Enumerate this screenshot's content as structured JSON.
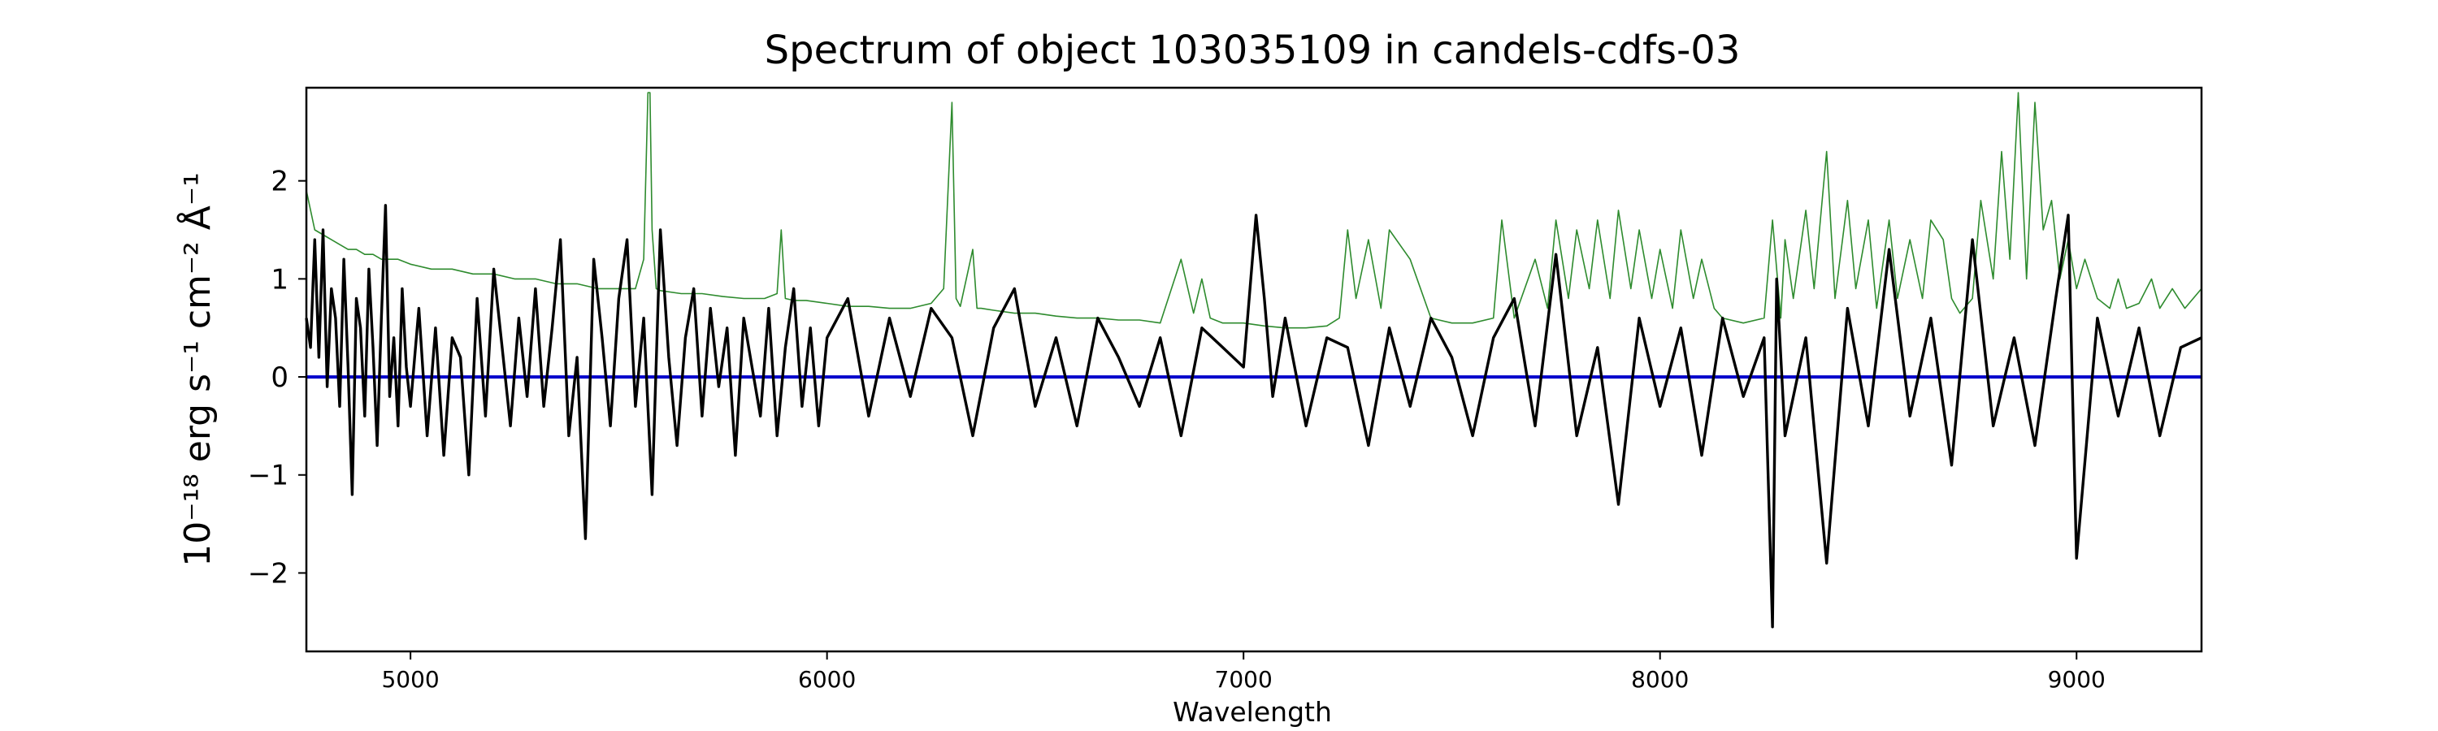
{
  "chart_data": {
    "type": "line",
    "title": "Spectrum of object 103035109 in candels-cdfs-03",
    "xlabel": "Wavelength",
    "ylabel": "10⁻¹⁸ erg s⁻¹ cm⁻² Å⁻¹",
    "xlim": [
      4750,
      9300
    ],
    "ylim": [
      -2.8,
      2.95
    ],
    "xticks": [
      5000,
      6000,
      7000,
      8000,
      9000
    ],
    "yticks": [
      -2,
      -1,
      0,
      1,
      2
    ],
    "grid": false,
    "legend": "none",
    "series": [
      {
        "role": "flux",
        "color": "#000000",
        "x": [
          4750,
          4760,
          4770,
          4780,
          4790,
          4800,
          4810,
          4820,
          4830,
          4840,
          4850,
          4860,
          4870,
          4880,
          4890,
          4900,
          4910,
          4920,
          4930,
          4940,
          4950,
          4960,
          4970,
          4980,
          4990,
          5000,
          5020,
          5040,
          5060,
          5080,
          5100,
          5120,
          5140,
          5160,
          5180,
          5200,
          5220,
          5240,
          5260,
          5280,
          5300,
          5320,
          5340,
          5360,
          5380,
          5400,
          5420,
          5440,
          5460,
          5480,
          5500,
          5520,
          5540,
          5560,
          5580,
          5600,
          5620,
          5640,
          5660,
          5680,
          5700,
          5720,
          5740,
          5760,
          5780,
          5800,
          5820,
          5840,
          5860,
          5880,
          5900,
          5920,
          5940,
          5960,
          5980,
          6000,
          6050,
          6100,
          6150,
          6200,
          6250,
          6300,
          6350,
          6400,
          6450,
          6500,
          6550,
          6600,
          6650,
          6700,
          6750,
          6800,
          6850,
          6900,
          6950,
          7000,
          7030,
          7050,
          7070,
          7100,
          7150,
          7200,
          7250,
          7300,
          7350,
          7400,
          7450,
          7500,
          7550,
          7600,
          7650,
          7700,
          7750,
          7800,
          7850,
          7900,
          7950,
          8000,
          8050,
          8100,
          8150,
          8200,
          8250,
          8270,
          8280,
          8300,
          8350,
          8400,
          8450,
          8500,
          8550,
          8600,
          8650,
          8700,
          8750,
          8800,
          8850,
          8900,
          8950,
          8980,
          9000,
          9050,
          9100,
          9150,
          9200,
          9250,
          9300
        ],
        "y": [
          0.6,
          0.3,
          1.4,
          0.2,
          1.5,
          -0.1,
          0.9,
          0.6,
          -0.3,
          1.2,
          0.1,
          -1.2,
          0.8,
          0.5,
          -0.4,
          1.1,
          0.3,
          -0.7,
          0.6,
          1.75,
          -0.2,
          0.4,
          -0.5,
          0.9,
          0.1,
          -0.3,
          0.7,
          -0.6,
          0.5,
          -0.8,
          0.4,
          0.2,
          -1.0,
          0.8,
          -0.4,
          1.1,
          0.3,
          -0.5,
          0.6,
          -0.2,
          0.9,
          -0.3,
          0.5,
          1.4,
          -0.6,
          0.2,
          -1.65,
          1.2,
          0.4,
          -0.5,
          0.8,
          1.4,
          -0.3,
          0.6,
          -1.2,
          1.5,
          0.2,
          -0.7,
          0.4,
          0.9,
          -0.4,
          0.7,
          -0.1,
          0.5,
          -0.8,
          0.6,
          0.1,
          -0.4,
          0.7,
          -0.6,
          0.3,
          0.9,
          -0.3,
          0.5,
          -0.5,
          0.4,
          0.8,
          -0.4,
          0.6,
          -0.2,
          0.7,
          0.4,
          -0.6,
          0.5,
          0.9,
          -0.3,
          0.4,
          -0.5,
          0.6,
          0.2,
          -0.3,
          0.4,
          -0.6,
          0.5,
          0.3,
          0.1,
          1.65,
          0.8,
          -0.2,
          0.6,
          -0.5,
          0.4,
          0.3,
          -0.7,
          0.5,
          -0.3,
          0.6,
          0.2,
          -0.6,
          0.4,
          0.8,
          -0.5,
          1.25,
          -0.6,
          0.3,
          -1.3,
          0.6,
          -0.3,
          0.5,
          -0.8,
          0.6,
          -0.2,
          0.4,
          -2.55,
          1.0,
          -0.6,
          0.4,
          -1.9,
          0.7,
          -0.5,
          1.3,
          -0.4,
          0.6,
          -0.9,
          1.4,
          -0.5,
          0.4,
          -0.7,
          0.8,
          1.65,
          -1.85,
          0.6,
          -0.4,
          0.5,
          -0.6,
          0.3,
          0.4
        ]
      },
      {
        "role": "noise",
        "color": "#2e8b2e",
        "x": [
          4750,
          4770,
          4790,
          4810,
          4830,
          4850,
          4870,
          4890,
          4910,
          4930,
          4950,
          4970,
          5000,
          5050,
          5100,
          5150,
          5200,
          5250,
          5300,
          5350,
          5400,
          5450,
          5500,
          5540,
          5560,
          5570,
          5575,
          5580,
          5590,
          5600,
          5650,
          5700,
          5750,
          5800,
          5850,
          5880,
          5890,
          5900,
          5920,
          5950,
          6000,
          6050,
          6100,
          6150,
          6200,
          6250,
          6280,
          6300,
          6310,
          6320,
          6350,
          6360,
          6370,
          6400,
          6450,
          6500,
          6550,
          6600,
          6650,
          6700,
          6750,
          6800,
          6850,
          6880,
          6900,
          6920,
          6950,
          7000,
          7050,
          7100,
          7150,
          7200,
          7230,
          7250,
          7270,
          7300,
          7330,
          7350,
          7400,
          7450,
          7500,
          7550,
          7600,
          7620,
          7650,
          7700,
          7730,
          7750,
          7780,
          7800,
          7830,
          7850,
          7880,
          7900,
          7930,
          7950,
          7980,
          8000,
          8030,
          8050,
          8080,
          8100,
          8130,
          8150,
          8200,
          8250,
          8270,
          8290,
          8300,
          8320,
          8350,
          8370,
          8400,
          8420,
          8450,
          8470,
          8500,
          8520,
          8550,
          8570,
          8600,
          8630,
          8650,
          8680,
          8700,
          8720,
          8750,
          8770,
          8800,
          8820,
          8840,
          8860,
          8880,
          8900,
          8920,
          8940,
          8960,
          8980,
          9000,
          9020,
          9050,
          9080,
          9100,
          9120,
          9150,
          9180,
          9200,
          9230,
          9260,
          9300
        ],
        "y": [
          1.9,
          1.5,
          1.45,
          1.4,
          1.35,
          1.3,
          1.3,
          1.25,
          1.25,
          1.2,
          1.2,
          1.2,
          1.15,
          1.1,
          1.1,
          1.05,
          1.05,
          1.0,
          1.0,
          0.95,
          0.95,
          0.9,
          0.9,
          0.9,
          1.2,
          2.9,
          2.9,
          1.5,
          0.9,
          0.88,
          0.85,
          0.85,
          0.82,
          0.8,
          0.8,
          0.85,
          1.5,
          0.8,
          0.78,
          0.78,
          0.75,
          0.72,
          0.72,
          0.7,
          0.7,
          0.75,
          0.9,
          2.8,
          0.8,
          0.72,
          1.3,
          0.7,
          0.7,
          0.68,
          0.65,
          0.65,
          0.62,
          0.6,
          0.6,
          0.58,
          0.58,
          0.55,
          1.2,
          0.65,
          1.0,
          0.6,
          0.55,
          0.55,
          0.52,
          0.5,
          0.5,
          0.52,
          0.6,
          1.5,
          0.8,
          1.4,
          0.7,
          1.5,
          1.2,
          0.6,
          0.55,
          0.55,
          0.6,
          1.6,
          0.6,
          1.2,
          0.7,
          1.6,
          0.8,
          1.5,
          0.9,
          1.6,
          0.8,
          1.7,
          0.9,
          1.5,
          0.8,
          1.3,
          0.7,
          1.5,
          0.8,
          1.2,
          0.7,
          0.6,
          0.55,
          0.6,
          1.6,
          0.6,
          1.4,
          0.8,
          1.7,
          0.9,
          2.3,
          0.8,
          1.8,
          0.9,
          1.6,
          0.7,
          1.6,
          0.8,
          1.4,
          0.8,
          1.6,
          1.4,
          0.8,
          0.65,
          0.8,
          1.8,
          1.0,
          2.3,
          1.2,
          2.9,
          1.0,
          2.8,
          1.5,
          1.8,
          1.0,
          1.4,
          0.9,
          1.2,
          0.8,
          0.7,
          1.0,
          0.7,
          0.75,
          1.0,
          0.7,
          0.9,
          0.7,
          0.9
        ]
      },
      {
        "role": "zero",
        "color": "#0000cc",
        "x": [
          4750,
          9300
        ],
        "y": [
          0,
          0
        ]
      }
    ]
  }
}
